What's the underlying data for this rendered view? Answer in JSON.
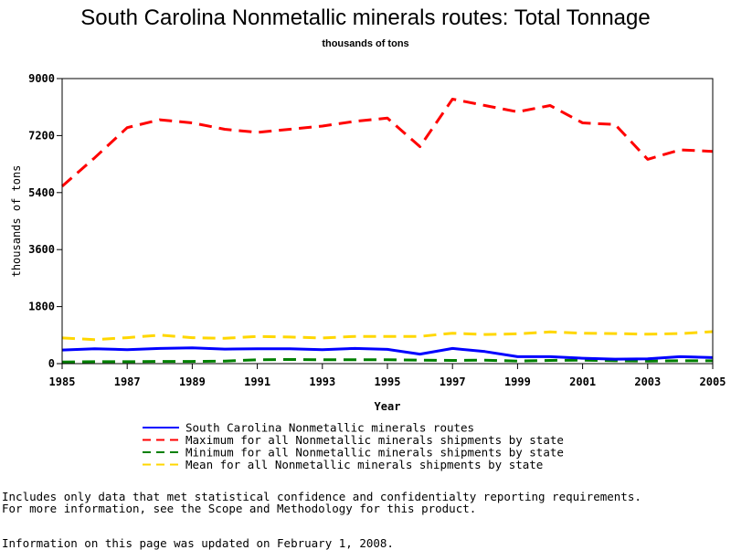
{
  "chart_data": {
    "type": "line",
    "title": "South Carolina Nonmetallic minerals routes: Total Tonnage",
    "subtitle": "thousands of tons",
    "xlabel": "Year",
    "ylabel": "thousands of tons",
    "xlim": [
      1985,
      2005
    ],
    "ylim": [
      0,
      9000
    ],
    "x_ticks": [
      "1985",
      "1987",
      "1989",
      "1991",
      "1993",
      "1995",
      "1997",
      "1999",
      "2001",
      "2003",
      "2005"
    ],
    "y_ticks": [
      "0",
      "1800",
      "3600",
      "5400",
      "7200",
      "9000"
    ],
    "grid": false,
    "legend_position": "bottom",
    "x": [
      1985,
      1986,
      1987,
      1988,
      1989,
      1990,
      1991,
      1992,
      1993,
      1994,
      1995,
      1996,
      1997,
      1998,
      1999,
      2000,
      2001,
      2002,
      2003,
      2004,
      2005
    ],
    "series": [
      {
        "name": "South Carolina Nonmetallic minerals routes",
        "color": "#0000ff",
        "dash": "solid",
        "values": [
          430,
          470,
          440,
          480,
          500,
          460,
          470,
          470,
          440,
          480,
          450,
          300,
          480,
          380,
          220,
          220,
          170,
          140,
          150,
          220,
          190
        ]
      },
      {
        "name": "Maximum for all Nonmetallic minerals shipments by state",
        "color": "#ff0000",
        "dash": "dashed",
        "values": [
          5600,
          6500,
          7450,
          7700,
          7600,
          7400,
          7300,
          7400,
          7500,
          7650,
          7750,
          6850,
          8350,
          8150,
          7950,
          8150,
          7600,
          7550,
          6450,
          6750,
          6700
        ]
      },
      {
        "name": "Minimum for all Nonmetallic minerals shipments by state",
        "color": "#008000",
        "dash": "dashed",
        "values": [
          50,
          60,
          60,
          70,
          70,
          80,
          120,
          130,
          120,
          120,
          120,
          110,
          100,
          110,
          80,
          100,
          110,
          90,
          80,
          90,
          90
        ]
      },
      {
        "name": "Mean for all Nonmetallic minerals shipments by state",
        "color": "#ffd700",
        "dash": "dashed",
        "values": [
          810,
          760,
          820,
          900,
          820,
          800,
          860,
          840,
          810,
          860,
          860,
          860,
          960,
          920,
          940,
          1000,
          960,
          950,
          930,
          950,
          1010
        ]
      }
    ]
  },
  "footnotes": {
    "line1": "Includes only data that met statistical confidence and confidentialty reporting requirements.",
    "line2": "For more information, see the Scope and Methodology for this product.",
    "line3": "Information on this page was updated on February 1, 2008."
  }
}
